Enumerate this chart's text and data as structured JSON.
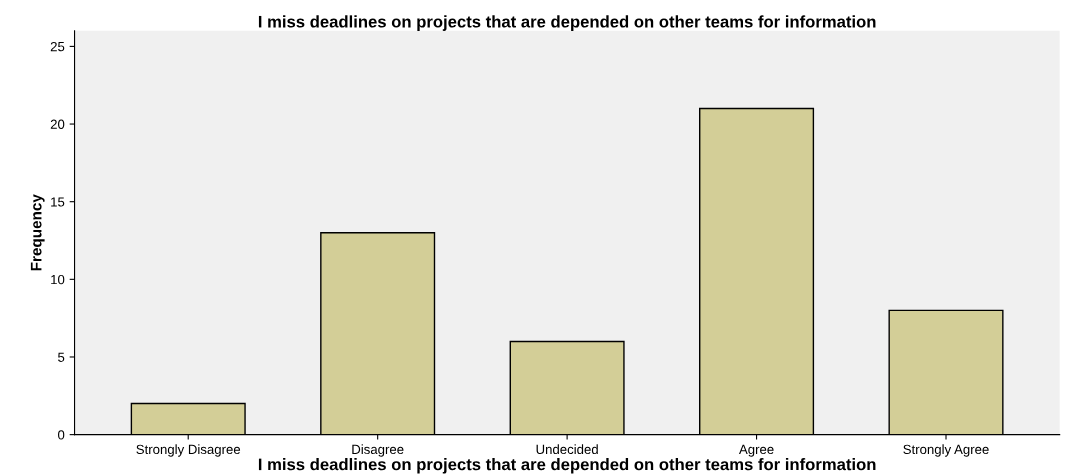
{
  "chart_data": {
    "type": "bar",
    "title": "I miss deadlines on projects that are depended on other teams for information",
    "xlabel": "I miss deadlines on projects that are depended on other teams for information",
    "ylabel": "Frequency",
    "categories": [
      "Strongly Disagree",
      "Disagree",
      "Undecided",
      "Agree",
      "Strongly Agree"
    ],
    "values": [
      2,
      13,
      6,
      21,
      8
    ],
    "color": "#d3ce97",
    "ylim": [
      0,
      26
    ],
    "yticks": [
      0,
      5,
      10,
      15,
      20,
      25
    ],
    "grid": false,
    "legend": false
  }
}
